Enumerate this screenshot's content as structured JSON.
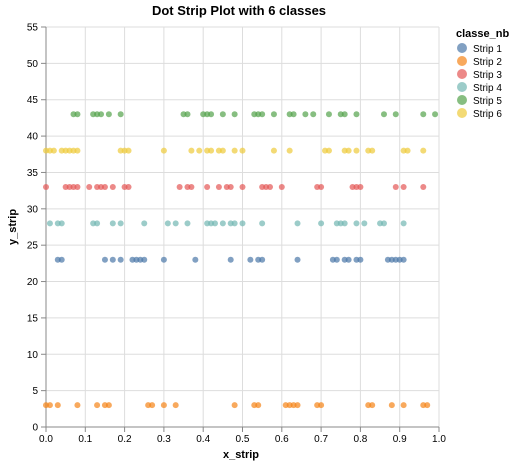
{
  "chart_data": {
    "type": "scatter",
    "title": "Dot Strip Plot with 6 classes",
    "xlabel": "x_strip",
    "ylabel": "y_strip",
    "xlim": [
      0,
      1
    ],
    "ylim": [
      0,
      55
    ],
    "x_ticks": [
      "0.0",
      "0.1",
      "0.2",
      "0.3",
      "0.4",
      "0.5",
      "0.6",
      "0.7",
      "0.8",
      "0.9",
      "1.0"
    ],
    "y_ticks": [
      "0",
      "5",
      "10",
      "15",
      "20",
      "25",
      "30",
      "35",
      "40",
      "45",
      "50",
      "55"
    ],
    "grid": true,
    "legend": {
      "title": "classe_nb",
      "position": "top-right"
    },
    "series": [
      {
        "name": "Strip 1",
        "color": "#4c78a8",
        "y": 23,
        "x": [
          0.03,
          0.04,
          0.15,
          0.17,
          0.19,
          0.22,
          0.23,
          0.24,
          0.25,
          0.3,
          0.38,
          0.47,
          0.52,
          0.54,
          0.55,
          0.64,
          0.73,
          0.74,
          0.76,
          0.77,
          0.79,
          0.8,
          0.87,
          0.88,
          0.89,
          0.9,
          0.91
        ]
      },
      {
        "name": "Strip 2",
        "color": "#f58518",
        "y": 3,
        "x": [
          0.0,
          0.01,
          0.03,
          0.08,
          0.13,
          0.15,
          0.16,
          0.26,
          0.27,
          0.3,
          0.33,
          0.48,
          0.53,
          0.54,
          0.61,
          0.62,
          0.63,
          0.64,
          0.69,
          0.7,
          0.82,
          0.83,
          0.88,
          0.91,
          0.96,
          0.97
        ]
      },
      {
        "name": "Strip 3",
        "color": "#e45756",
        "y": 33,
        "x": [
          0.0,
          0.05,
          0.06,
          0.07,
          0.08,
          0.11,
          0.13,
          0.14,
          0.15,
          0.17,
          0.2,
          0.21,
          0.34,
          0.36,
          0.37,
          0.41,
          0.44,
          0.46,
          0.47,
          0.5,
          0.55,
          0.56,
          0.57,
          0.6,
          0.69,
          0.7,
          0.78,
          0.79,
          0.8,
          0.89,
          0.91,
          0.96
        ]
      },
      {
        "name": "Strip 4",
        "color": "#72b7b2",
        "y": 28,
        "x": [
          0.01,
          0.03,
          0.04,
          0.12,
          0.13,
          0.17,
          0.19,
          0.25,
          0.31,
          0.33,
          0.36,
          0.41,
          0.42,
          0.43,
          0.45,
          0.47,
          0.48,
          0.5,
          0.55,
          0.64,
          0.7,
          0.74,
          0.75,
          0.76,
          0.79,
          0.81,
          0.85,
          0.86,
          0.91
        ]
      },
      {
        "name": "Strip 5",
        "color": "#54a24b",
        "y": 43,
        "x": [
          0.07,
          0.08,
          0.12,
          0.13,
          0.14,
          0.16,
          0.19,
          0.35,
          0.36,
          0.4,
          0.41,
          0.42,
          0.45,
          0.48,
          0.53,
          0.54,
          0.55,
          0.58,
          0.62,
          0.63,
          0.66,
          0.68,
          0.72,
          0.75,
          0.76,
          0.79,
          0.86,
          0.89,
          0.96,
          0.99
        ]
      },
      {
        "name": "Strip 6",
        "color": "#eeca3b",
        "y": 38,
        "x": [
          0.0,
          0.01,
          0.02,
          0.04,
          0.05,
          0.06,
          0.07,
          0.08,
          0.19,
          0.2,
          0.21,
          0.3,
          0.37,
          0.39,
          0.41,
          0.42,
          0.44,
          0.45,
          0.48,
          0.5,
          0.58,
          0.62,
          0.71,
          0.72,
          0.76,
          0.77,
          0.79,
          0.82,
          0.83,
          0.91,
          0.92,
          0.96
        ]
      }
    ]
  }
}
